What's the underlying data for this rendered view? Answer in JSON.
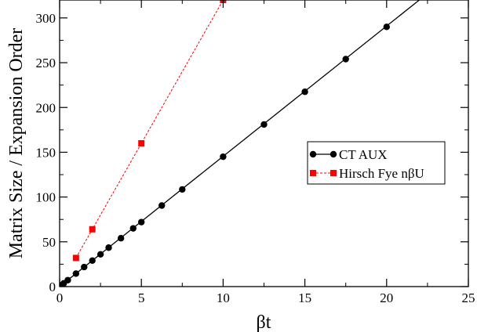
{
  "chart_data": {
    "type": "line",
    "xlabel": "βt",
    "ylabel": "Matrix Size / Expansion Order",
    "xlim": [
      0,
      25
    ],
    "ylim": [
      0,
      320
    ],
    "xticks": [
      0,
      5,
      10,
      15,
      20,
      25
    ],
    "yticks": [
      0,
      50,
      100,
      150,
      200,
      250,
      300
    ],
    "grid": false,
    "legend_position": "right",
    "series": [
      {
        "name": "CT AUX",
        "color": "#000000",
        "marker": "circle",
        "line": "solid",
        "fit_line": {
          "x": [
            0,
            22
          ],
          "y": [
            0,
            320
          ]
        },
        "x": [
          0.1,
          0.25,
          0.5,
          1,
          1.5,
          2,
          2.5,
          3,
          3.75,
          4.5,
          5,
          6.25,
          7.5,
          10,
          12.5,
          15,
          17.5,
          20
        ],
        "y": [
          1.5,
          3.6,
          7.2,
          14.5,
          21.8,
          29,
          36,
          43.5,
          54,
          65,
          72,
          90.5,
          108.5,
          145,
          181,
          217.5,
          254,
          290
        ]
      },
      {
        "name": "Hirsch Fye nβU",
        "color": "#ff0000",
        "marker": "square",
        "line": "dashed",
        "x": [
          1,
          2,
          5,
          10
        ],
        "y": [
          32,
          64,
          160,
          320
        ]
      }
    ]
  }
}
